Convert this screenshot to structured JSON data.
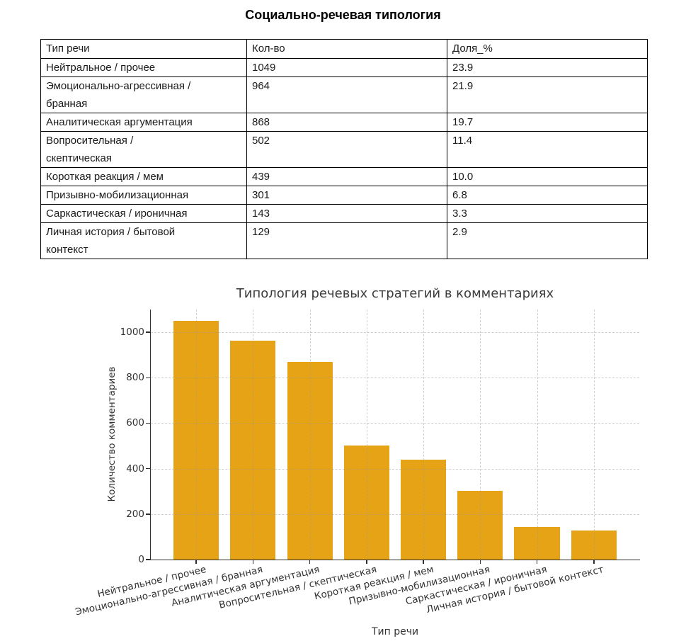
{
  "doc": {
    "title": "Социально-речевая типология"
  },
  "table": {
    "headers": [
      "Тип речи",
      "Кол-во",
      "Доля_%"
    ],
    "rows": [
      {
        "type": "Нейтральное / прочее",
        "count": "1049",
        "share": "23.9"
      },
      {
        "type": "Эмоционально-агрессивная /\nбранная",
        "count": "964",
        "share": "21.9"
      },
      {
        "type": "Аналитическая аргументация",
        "count": "868",
        "share": "19.7"
      },
      {
        "type": "Вопросительная /\nскептическая",
        "count": "502",
        "share": "11.4"
      },
      {
        "type": "Короткая реакция / мем",
        "count": "439",
        "share": "10.0"
      },
      {
        "type": "Призывно-мобилизационная",
        "count": "301",
        "share": "6.8"
      },
      {
        "type": "Саркастическая / ироничная",
        "count": "143",
        "share": "3.3"
      },
      {
        "type": "Личная история / бытовой\nконтекст",
        "count": "129",
        "share": "2.9"
      }
    ]
  },
  "chart_data": {
    "type": "bar",
    "title": "Типология речевых стратегий в комментариях",
    "xlabel": "Тип речи",
    "ylabel": "Количество комментариев",
    "categories": [
      "Нейтральное / прочее",
      "Эмоционально-агрессивная / бранная",
      "Аналитическая аргументация",
      "Вопросительная / скептическая",
      "Короткая реакция / мем",
      "Призывно-мобилизационная",
      "Саркастическая / ироничная",
      "Личная история / бытовой контекст"
    ],
    "values": [
      1049,
      964,
      868,
      502,
      439,
      301,
      143,
      129
    ],
    "yticks": [
      0,
      200,
      400,
      600,
      800,
      1000
    ],
    "ylim": [
      0,
      1100
    ],
    "bar_color": "#E7A316",
    "grid": "dashed",
    "legend": "none"
  }
}
